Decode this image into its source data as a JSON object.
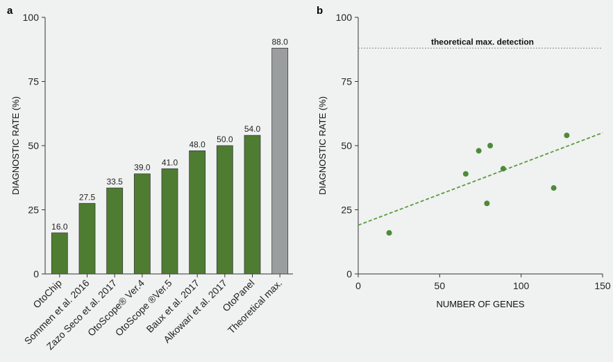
{
  "chart_data": [
    {
      "panel": "a",
      "type": "bar",
      "ylabel": "DIAGNOSTIC RATE (%)",
      "ylim": [
        0,
        100
      ],
      "yticks": [
        "0",
        "25",
        "50",
        "75",
        "100"
      ],
      "categories": [
        "OtoChip",
        "Sommen et al. 2016",
        "Zazo Seco et al. 2017",
        "OtoScope® Ver.4",
        "OtoScope ®Ver.5",
        "Baux et al. 2017",
        "Alkowari et al. 2017",
        "OtoPanel",
        "Theoretical max."
      ],
      "values": [
        16.0,
        27.5,
        33.5,
        39.0,
        41.0,
        48.0,
        50.0,
        54.0,
        88.0
      ],
      "value_labels": [
        "16.0",
        "27.5",
        "33.5",
        "39.0",
        "41.0",
        "48.0",
        "50.0",
        "54.0",
        "88.0"
      ],
      "colors": [
        "#4e7d32",
        "#4e7d32",
        "#4e7d32",
        "#4e7d32",
        "#4e7d32",
        "#4e7d32",
        "#4e7d32",
        "#4e7d32",
        "#9b9e9f"
      ]
    },
    {
      "panel": "b",
      "type": "scatter",
      "xlabel": "NUMBER OF GENES",
      "ylabel": "DIAGNOSTIC RATE (%)",
      "xlim": [
        0,
        150
      ],
      "ylim": [
        0,
        100
      ],
      "xticks": [
        "0",
        "50",
        "100",
        "150"
      ],
      "yticks": [
        "0",
        "25",
        "50",
        "75",
        "100"
      ],
      "points": [
        {
          "x": 19,
          "y": 16
        },
        {
          "x": 66,
          "y": 39
        },
        {
          "x": 74,
          "y": 48
        },
        {
          "x": 79,
          "y": 27.5
        },
        {
          "x": 81,
          "y": 50
        },
        {
          "x": 89,
          "y": 41
        },
        {
          "x": 120,
          "y": 33.5
        },
        {
          "x": 128,
          "y": 54
        }
      ],
      "point_color": "#4e8a3a",
      "trendline": {
        "x": [
          0,
          150
        ],
        "y": [
          19,
          55
        ],
        "color": "#5a9a3c",
        "style": "dashed"
      },
      "reference_line": {
        "y": 88,
        "label": "theoretical max. detection",
        "style": "dotted"
      }
    }
  ]
}
